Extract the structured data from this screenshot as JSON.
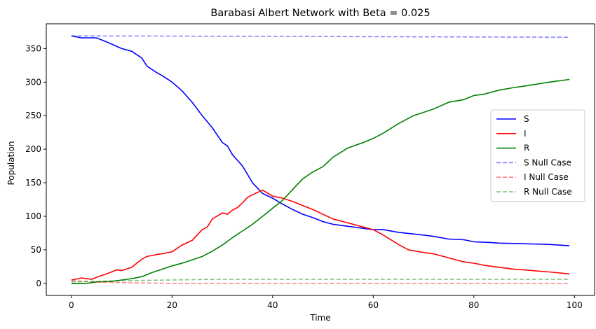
{
  "chart_data": {
    "type": "line",
    "title": "Barabasi Albert Network with Beta = 0.025",
    "xlabel": "Time",
    "ylabel": "Population",
    "xlim": [
      -5,
      104
    ],
    "ylim": [
      -18,
      387
    ],
    "xticks": [
      0,
      20,
      40,
      60,
      80,
      100
    ],
    "yticks": [
      0,
      50,
      100,
      150,
      200,
      250,
      300,
      350
    ],
    "grid": false,
    "legend_position": "center-right",
    "series": [
      {
        "name": "S",
        "color": "#0000ff",
        "style": "solid",
        "x": [
          0,
          2,
          5,
          7,
          10,
          12,
          14,
          15,
          17,
          18,
          20,
          22,
          24,
          26,
          28,
          30,
          31,
          32,
          34,
          36,
          38,
          40,
          42,
          44,
          46,
          48,
          50,
          52,
          55,
          58,
          60,
          62,
          65,
          70,
          72,
          75,
          78,
          80,
          83,
          85,
          90,
          95,
          99
        ],
        "y": [
          369,
          366,
          366,
          360,
          350,
          346,
          336,
          324,
          314,
          310,
          300,
          287,
          270,
          250,
          232,
          210,
          205,
          192,
          175,
          150,
          134,
          127,
          118,
          110,
          103,
          98,
          92,
          88,
          85,
          82,
          80,
          80,
          76,
          72,
          70,
          66,
          65,
          62,
          61,
          60,
          59,
          58,
          56
        ]
      },
      {
        "name": "I",
        "color": "#ff0000",
        "style": "solid",
        "x": [
          0,
          2,
          4,
          5,
          7,
          9,
          10,
          12,
          13,
          14,
          15,
          17,
          18,
          20,
          22,
          24,
          26,
          27,
          28,
          30,
          31,
          32,
          33,
          34,
          35,
          36,
          38,
          40,
          42,
          44,
          46,
          48,
          50,
          52,
          55,
          58,
          60,
          62,
          65,
          67,
          70,
          72,
          75,
          78,
          80,
          82,
          85,
          88,
          90,
          95,
          99
        ],
        "y": [
          5,
          8,
          6,
          9,
          14,
          20,
          19,
          24,
          30,
          36,
          40,
          43,
          44,
          47,
          57,
          64,
          80,
          84,
          96,
          105,
          103,
          109,
          113,
          120,
          128,
          132,
          139,
          130,
          127,
          122,
          116,
          110,
          103,
          96,
          90,
          84,
          80,
          72,
          58,
          50,
          46,
          44,
          38,
          32,
          30,
          27,
          24,
          21,
          20,
          17,
          14
        ]
      },
      {
        "name": "R",
        "color": "#008000",
        "style": "solid",
        "x": [
          0,
          3,
          5,
          8,
          10,
          12,
          14,
          16,
          18,
          20,
          22,
          24,
          26,
          28,
          30,
          32,
          34,
          36,
          38,
          40,
          42,
          44,
          46,
          48,
          50,
          52,
          55,
          58,
          60,
          62,
          65,
          68,
          70,
          72,
          75,
          78,
          80,
          82,
          85,
          88,
          90,
          95,
          99
        ],
        "y": [
          0,
          0,
          2,
          3,
          5,
          7,
          10,
          16,
          21,
          26,
          30,
          35,
          40,
          48,
          57,
          68,
          78,
          88,
          100,
          112,
          124,
          140,
          156,
          166,
          174,
          188,
          202,
          210,
          216,
          224,
          238,
          250,
          255,
          260,
          270,
          274,
          280,
          282,
          288,
          292,
          294,
          300,
          304
        ]
      },
      {
        "name": "S Null Case",
        "color": "#0000ff",
        "style": "dashed",
        "x": [
          0,
          99
        ],
        "y": [
          369,
          367
        ]
      },
      {
        "name": "I Null Case",
        "color": "#ff0000",
        "style": "dashed",
        "x": [
          0,
          5,
          10,
          20,
          30,
          99
        ],
        "y": [
          4,
          2,
          1,
          0,
          0,
          0
        ]
      },
      {
        "name": "R Null Case",
        "color": "#008000",
        "style": "dashed",
        "x": [
          0,
          5,
          10,
          20,
          30,
          50,
          99
        ],
        "y": [
          2,
          3,
          4,
          5,
          6,
          6,
          6
        ]
      }
    ]
  }
}
